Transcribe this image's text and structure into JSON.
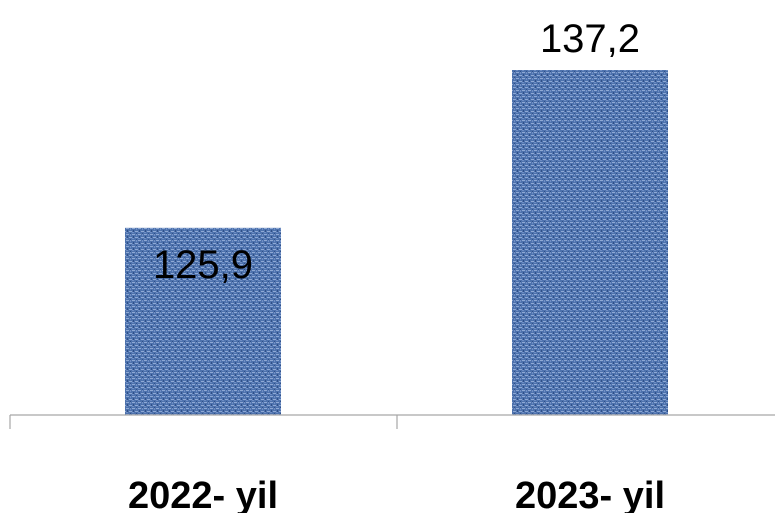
{
  "chart_data": {
    "type": "bar",
    "categories": [
      "2022- yil",
      "2023- yil"
    ],
    "values": [
      125.9,
      137.2
    ],
    "value_labels": [
      "125,9",
      "137,2"
    ],
    "title": "",
    "xlabel": "",
    "ylabel": "",
    "ylim": [
      112.5,
      137.2
    ],
    "grid": false,
    "legend": "none",
    "bar_color": "#4a6fa8",
    "bar_texture": "woven-denim"
  }
}
